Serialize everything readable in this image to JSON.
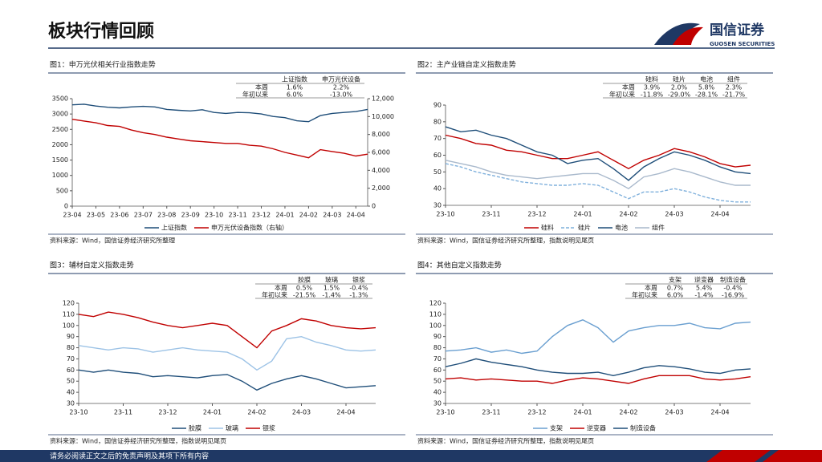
{
  "page": {
    "title": "板块行情回顾",
    "logo_name": "国信证券",
    "logo_sub": "GUOSEN SECURITIES",
    "footer": "请务必阅读正文之后的免责声明及其项下所有内容"
  },
  "chart_data": [
    {
      "type": "line",
      "title": "图1：申万光伏相关行业指数走势",
      "source": "资料来源：Wind，国信证券经济研究所整理",
      "table": {
        "columns": [
          "上证指数",
          "申万光伏设备"
        ],
        "rows": [
          {
            "label": "本周",
            "values": [
              "1.6%",
              "2.2%"
            ]
          },
          {
            "label": "年初以来",
            "values": [
              "6.0%",
              "-13.0%"
            ]
          }
        ]
      },
      "categories": [
        "23-04",
        null,
        "23-05",
        null,
        "23-06",
        null,
        "23-07",
        null,
        "23-08",
        null,
        "23-09",
        null,
        "23-10",
        null,
        "23-11",
        null,
        "23-12",
        null,
        "24-01",
        null,
        "24-02",
        null,
        "24-03",
        null,
        "24-04",
        null
      ],
      "ylim": [
        0,
        3500
      ],
      "yticks": [
        0,
        500,
        1000,
        1500,
        2000,
        2500,
        3000,
        3500
      ],
      "y2lim": [
        0,
        12000
      ],
      "y2ticks": [
        0,
        {
          "value": 2000,
          "label": "2,000"
        },
        {
          "value": 4000,
          "label": "4,000"
        },
        {
          "value": 6000,
          "label": "6,000"
        },
        {
          "value": 8000,
          "label": "8,000"
        },
        {
          "value": 10000,
          "label": "10,000"
        },
        {
          "value": 12000,
          "label": "12,000"
        }
      ],
      "series": [
        {
          "name": "上证指数",
          "color": "#1f4e79",
          "values": [
            3300,
            3320,
            3260,
            3220,
            3200,
            3230,
            3250,
            3230,
            3150,
            3120,
            3100,
            3140,
            3050,
            3020,
            3050,
            3040,
            3000,
            2920,
            2880,
            2780,
            2750,
            2950,
            3020,
            3050,
            3080,
            3150
          ]
        },
        {
          "name": "申万光伏设备指数（右轴）",
          "color": "#c00000",
          "axis": "y2",
          "values": [
            9700,
            9500,
            9300,
            9000,
            8900,
            8500,
            8200,
            8000,
            7700,
            7500,
            7300,
            7200,
            7100,
            7000,
            7000,
            6800,
            6700,
            6400,
            6000,
            5700,
            5400,
            6300,
            6100,
            5900,
            5600,
            5800
          ]
        }
      ]
    },
    {
      "type": "line",
      "title": "图2：主产业链自定义指数走势",
      "source": "资料来源：Wind，国信证券经济研究所整理，指数说明见尾页",
      "table": {
        "columns": [
          "硅料",
          "硅片",
          "电池",
          "组件"
        ],
        "rows": [
          {
            "label": "本周",
            "values": [
              "3.9%",
              "2.0%",
              "5.8%",
              "2.3%"
            ]
          },
          {
            "label": "年初以来",
            "values": [
              "-11.8%",
              "-29.0%",
              "-28.1%",
              "-21.7%"
            ]
          }
        ]
      },
      "categories": [
        "23-10",
        null,
        null,
        "23-11",
        null,
        null,
        "23-12",
        null,
        null,
        "24-01",
        null,
        null,
        "24-02",
        null,
        null,
        "24-03",
        null,
        null,
        "24-04",
        null,
        null
      ],
      "ylim": [
        30,
        90
      ],
      "yticks": [
        30,
        40,
        50,
        60,
        70,
        80,
        90
      ],
      "series": [
        {
          "name": "硅料",
          "color": "#c00000",
          "values": [
            72,
            70,
            67,
            66,
            63,
            62,
            60,
            58,
            58,
            60,
            62,
            57,
            52,
            57,
            60,
            64,
            62,
            59,
            55,
            53,
            54
          ]
        },
        {
          "name": "硅片",
          "color": "#7fb0dc",
          "dashed": true,
          "values": [
            55,
            53,
            50,
            48,
            46,
            44,
            43,
            42,
            42,
            43,
            42,
            38,
            34,
            38,
            38,
            40,
            38,
            35,
            33,
            32,
            32
          ]
        },
        {
          "name": "电池",
          "color": "#1f4e79",
          "values": [
            77,
            74,
            75,
            72,
            70,
            66,
            62,
            60,
            55,
            57,
            58,
            52,
            45,
            53,
            58,
            62,
            60,
            57,
            53,
            50,
            49
          ]
        },
        {
          "name": "组件",
          "color": "#a9b9cc",
          "values": [
            57,
            55,
            53,
            50,
            48,
            47,
            46,
            47,
            48,
            49,
            49,
            45,
            40,
            47,
            49,
            52,
            50,
            47,
            44,
            42,
            42
          ]
        }
      ]
    },
    {
      "type": "line",
      "title": "图3：辅材自定义指数走势",
      "source": "资料来源：Wind，国信证券经济研究所整理，指数说明见尾页",
      "table": {
        "columns": [
          "胶膜",
          "玻璃",
          "银浆"
        ],
        "rows": [
          {
            "label": "本周",
            "values": [
              "0.5%",
              "1.5%",
              "-0.4%"
            ]
          },
          {
            "label": "年初以来",
            "values": [
              "-21.5%",
              "-1.4%",
              "-1.3%"
            ]
          }
        ]
      },
      "categories": [
        "23-10",
        null,
        null,
        "23-11",
        null,
        null,
        "23-12",
        null,
        null,
        "24-01",
        null,
        null,
        "24-02",
        null,
        null,
        "24-03",
        null,
        null,
        "24-04",
        null,
        null
      ],
      "ylim": [
        30,
        120
      ],
      "yticks": [
        30,
        40,
        50,
        60,
        70,
        80,
        90,
        100,
        110,
        120
      ],
      "series": [
        {
          "name": "胶膜",
          "color": "#1f4e79",
          "values": [
            60,
            58,
            60,
            58,
            57,
            54,
            55,
            54,
            53,
            55,
            56,
            50,
            42,
            48,
            52,
            55,
            52,
            48,
            44,
            45,
            46
          ]
        },
        {
          "name": "玻璃",
          "color": "#9dc3e6",
          "values": [
            82,
            80,
            78,
            80,
            79,
            76,
            78,
            80,
            78,
            77,
            76,
            70,
            60,
            68,
            88,
            90,
            85,
            82,
            78,
            77,
            78
          ]
        },
        {
          "name": "银浆",
          "color": "#c00000",
          "values": [
            110,
            108,
            112,
            110,
            107,
            103,
            100,
            98,
            100,
            102,
            100,
            90,
            80,
            95,
            100,
            106,
            104,
            100,
            98,
            97,
            98
          ]
        }
      ]
    },
    {
      "type": "line",
      "title": "图4：其他自定义指数走势",
      "source": "资料来源：Wind，国信证券经济研究所整理，指数说明见尾页",
      "table": {
        "columns": [
          "支架",
          "逆变器",
          "制造设备"
        ],
        "rows": [
          {
            "label": "本周",
            "values": [
              "0.7%",
              "5.4%",
              "-0.4%"
            ]
          },
          {
            "label": "年初以来",
            "values": [
              "6.0%",
              "-1.4%",
              "-16.9%"
            ]
          }
        ]
      },
      "categories": [
        "23-10",
        null,
        null,
        "23-11",
        null,
        null,
        "23-12",
        null,
        null,
        "24-01",
        null,
        null,
        "24-02",
        null,
        null,
        "24-03",
        null,
        null,
        "24-04",
        null,
        null
      ],
      "ylim": [
        30,
        120
      ],
      "yticks": [
        30,
        40,
        50,
        60,
        70,
        80,
        90,
        100,
        110,
        120
      ],
      "series": [
        {
          "name": "支架",
          "color": "#6a9fd0",
          "values": [
            77,
            78,
            80,
            76,
            78,
            75,
            77,
            90,
            100,
            105,
            98,
            85,
            95,
            98,
            100,
            100,
            102,
            98,
            97,
            102,
            103
          ]
        },
        {
          "name": "逆变器",
          "color": "#c00000",
          "values": [
            52,
            53,
            51,
            52,
            51,
            50,
            50,
            48,
            51,
            53,
            52,
            50,
            48,
            52,
            55,
            55,
            55,
            52,
            51,
            52,
            54
          ]
        },
        {
          "name": "制造设备",
          "color": "#1f4e79",
          "values": [
            63,
            66,
            70,
            67,
            65,
            63,
            60,
            58,
            57,
            57,
            58,
            55,
            58,
            62,
            64,
            63,
            61,
            58,
            57,
            60,
            61
          ]
        }
      ]
    }
  ]
}
